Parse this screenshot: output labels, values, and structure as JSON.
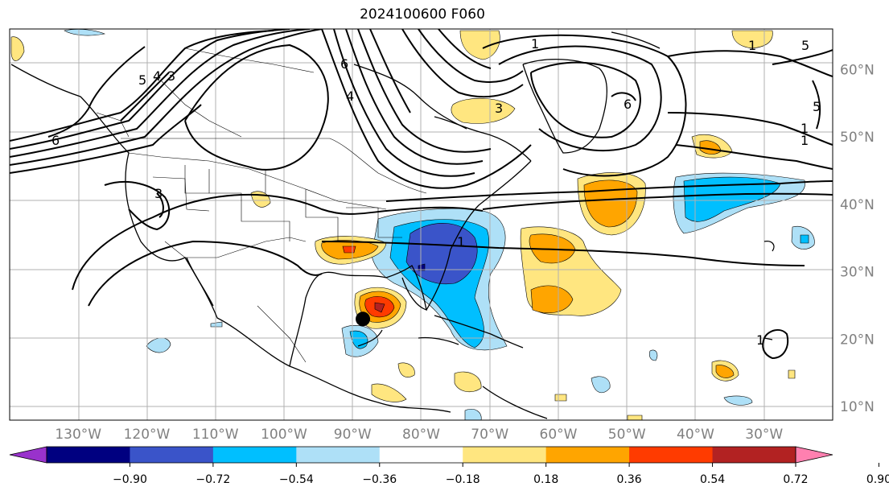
{
  "title": "2024100600 F060",
  "map": {
    "lon_range": [
      -140,
      -20
    ],
    "lat_range": [
      8,
      66
    ],
    "lon_ticks": [
      {
        "label": "130°W",
        "value": -130
      },
      {
        "label": "120°W",
        "value": -120
      },
      {
        "label": "110°W",
        "value": -110
      },
      {
        "label": "100°W",
        "value": -100
      },
      {
        "label": "90°W",
        "value": -90
      },
      {
        "label": "80°W",
        "value": -80
      },
      {
        "label": "70°W",
        "value": -70
      },
      {
        "label": "60°W",
        "value": -60
      },
      {
        "label": "50°W",
        "value": -50
      },
      {
        "label": "40°W",
        "value": -40
      },
      {
        "label": "30°W",
        "value": -30
      }
    ],
    "lat_ticks": [
      {
        "label": "60°N",
        "value": 60
      },
      {
        "label": "50°N",
        "value": 50
      },
      {
        "label": "40°N",
        "value": 40
      },
      {
        "label": "30°N",
        "value": 30
      },
      {
        "label": "20°N",
        "value": 20
      },
      {
        "label": "10°N",
        "value": 10
      }
    ],
    "gridlines": true,
    "marker": {
      "lon": -88.5,
      "lat": 23,
      "color": "#000000"
    }
  },
  "contour_labels": [
    "5",
    "4",
    "3",
    "6",
    "6",
    "4",
    "1",
    "5",
    "6",
    "1",
    "5",
    "1",
    "3",
    "1",
    "1",
    "3",
    "1"
  ],
  "colorbar": {
    "ticks": [
      "−0.90",
      "−0.72",
      "−0.54",
      "−0.36",
      "−0.18",
      "0.18",
      "0.36",
      "0.54",
      "0.72",
      "0.90"
    ],
    "colors": [
      "#9932cc",
      "#000080",
      "#3a54c9",
      "#00bfff",
      "#aee0f7",
      "#ffffff",
      "#ffe680",
      "#ffa500",
      "#ff3b00",
      "#b22222",
      "#ff80b0"
    ]
  }
}
